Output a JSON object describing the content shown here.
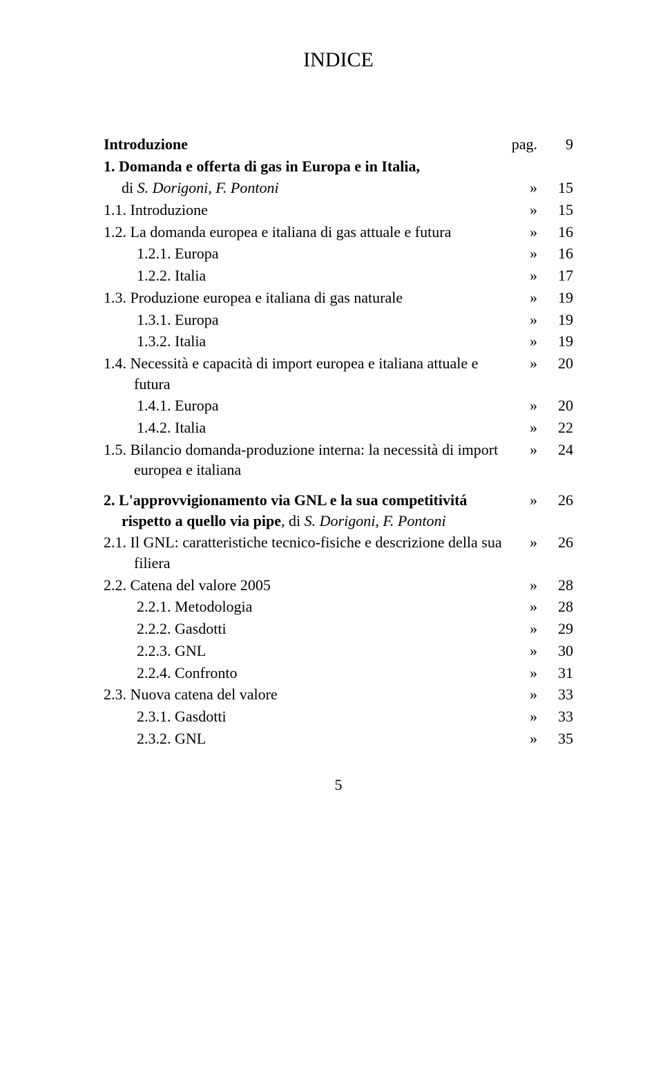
{
  "title": "INDICE",
  "page_number": "5",
  "colors": {
    "text": "#000000",
    "background": "#ffffff"
  },
  "font": {
    "family": "Times New Roman",
    "body_size_pt": 22,
    "title_size_pt": 30
  },
  "toc": [
    {
      "label": "Introduzione",
      "sym": "pag.",
      "pg": "9",
      "bold": true,
      "indent": 1,
      "symwide": true
    },
    {
      "label": "1. Domanda e offerta di gas in Europa e in Italia,",
      "sym": "",
      "pg": "",
      "bold": true,
      "indent": 1
    },
    {
      "label_html": "di <i>S. Dorigoni, F. Pontoni</i>",
      "sym": "»",
      "pg": "15",
      "bold": false,
      "indent": 2,
      "continuation": true,
      "cont_indent": 26
    },
    {
      "label": "1.1. Introduzione",
      "sym": "»",
      "pg": "15",
      "bold": false,
      "indent": 1
    },
    {
      "label": "1.2. La domanda europea e italiana di gas attuale e futura",
      "sym": "»",
      "pg": "16",
      "bold": false,
      "indent": 1
    },
    {
      "label": "1.2.1. Europa",
      "sym": "»",
      "pg": "16",
      "bold": false,
      "indent": 3
    },
    {
      "label": "1.2.2. Italia",
      "sym": "»",
      "pg": "17",
      "bold": false,
      "indent": 3
    },
    {
      "label": "1.3. Produzione europea e italiana di gas naturale",
      "sym": "»",
      "pg": "19",
      "bold": false,
      "indent": 1
    },
    {
      "label": "1.3.1. Europa",
      "sym": "»",
      "pg": "19",
      "bold": false,
      "indent": 3
    },
    {
      "label": "1.3.2. Italia",
      "sym": "»",
      "pg": "19",
      "bold": false,
      "indent": 3
    },
    {
      "label": "1.4. Necessità e capacità di import europea e italiana attuale e futura",
      "sym": "»",
      "pg": "20",
      "bold": false,
      "indent": 2
    },
    {
      "label": "1.4.1. Europa",
      "sym": "»",
      "pg": "20",
      "bold": false,
      "indent": 3
    },
    {
      "label": "1.4.2. Italia",
      "sym": "»",
      "pg": "22",
      "bold": false,
      "indent": 3
    },
    {
      "label": "1.5. Bilancio domanda-produzione interna: la necessità di import europea e italiana",
      "sym": "»",
      "pg": "24",
      "bold": false,
      "indent": 2
    },
    {
      "gap": true
    },
    {
      "label_html": "2. L'approvvigionamento via GNL e la sua competitivitá rispetto a quello via pipe<span style=\"font-weight:normal\">, di <i>S. Dorigoni, F. Pontoni</i></span>",
      "sym": "»",
      "pg": "26",
      "bold": true,
      "indent": 1,
      "hang": 26
    },
    {
      "label": "2.1. Il GNL: caratteristiche tecnico-fisiche e descrizione della sua filiera",
      "sym": "»",
      "pg": "26",
      "bold": false,
      "indent": 2
    },
    {
      "label": "2.2. Catena del valore 2005",
      "sym": "»",
      "pg": "28",
      "bold": false,
      "indent": 1
    },
    {
      "label": "2.2.1. Metodologia",
      "sym": "»",
      "pg": "28",
      "bold": false,
      "indent": 3
    },
    {
      "label": "2.2.2. Gasdotti",
      "sym": "»",
      "pg": "29",
      "bold": false,
      "indent": 3
    },
    {
      "label": "2.2.3. GNL",
      "sym": "»",
      "pg": "30",
      "bold": false,
      "indent": 3
    },
    {
      "label": "2.2.4. Confronto",
      "sym": "»",
      "pg": "31",
      "bold": false,
      "indent": 3
    },
    {
      "label": "2.3. Nuova catena del valore",
      "sym": "»",
      "pg": "33",
      "bold": false,
      "indent": 1
    },
    {
      "label": "2.3.1. Gasdotti",
      "sym": "»",
      "pg": "33",
      "bold": false,
      "indent": 3
    },
    {
      "label": "2.3.2. GNL",
      "sym": "»",
      "pg": "35",
      "bold": false,
      "indent": 3
    }
  ]
}
